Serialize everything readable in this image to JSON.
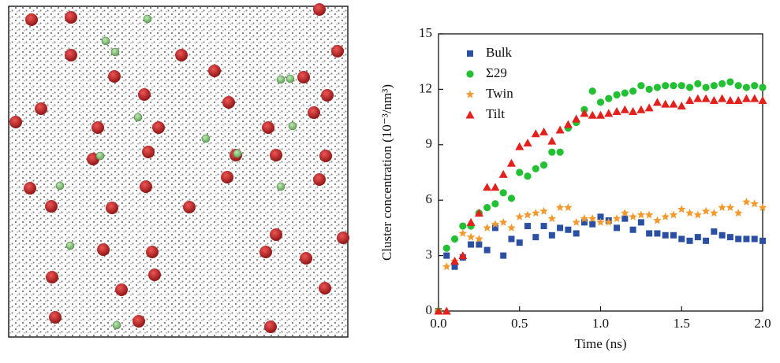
{
  "chart_data": {
    "type": "scatter",
    "x_label": "Time (ns)",
    "y_label": "Cluster concentration (10⁻³/nm³)",
    "xlim": [
      0,
      2
    ],
    "ylim": [
      0,
      15
    ],
    "xticks": [
      {
        "value": 0,
        "label": "0.0"
      },
      0.5,
      {
        "value": 1,
        "label": "1.0"
      },
      1.5,
      {
        "value": 2,
        "label": "2.0"
      }
    ],
    "yticks": [
      0,
      3,
      6,
      9,
      12,
      15
    ],
    "legend": "upper left",
    "x": [
      0,
      0.05,
      0.1,
      0.15,
      0.2,
      0.25,
      0.3,
      0.35,
      0.4,
      0.45,
      0.5,
      0.55,
      0.6,
      0.65,
      0.7,
      0.75,
      0.8,
      0.85,
      0.9,
      0.95,
      1.0,
      1.05,
      1.1,
      1.15,
      1.2,
      1.25,
      1.3,
      1.35,
      1.4,
      1.45,
      1.5,
      1.55,
      1.6,
      1.65,
      1.7,
      1.75,
      1.8,
      1.85,
      1.9,
      1.95,
      2.0
    ],
    "series": [
      {
        "name": "Bulk",
        "color": "#2b4fa3",
        "marker": "square",
        "values": [
          0,
          3.0,
          2.4,
          2.9,
          3.6,
          3.6,
          3.3,
          4.5,
          3.0,
          3.9,
          3.7,
          4.6,
          4.0,
          4.6,
          4.1,
          4.5,
          4.4,
          4.2,
          4.8,
          4.7,
          5.1,
          4.9,
          4.5,
          5.0,
          4.4,
          4.8,
          4.2,
          4.2,
          4.1,
          4.1,
          3.9,
          3.8,
          4.0,
          3.8,
          4.3,
          4.1,
          4.0,
          3.9,
          3.9,
          3.9,
          3.8
        ]
      },
      {
        "name": "Σ29",
        "color": "#22c032",
        "marker": "circle",
        "values": [
          0,
          3.4,
          3.9,
          4.6,
          4.6,
          5.3,
          5.6,
          5.8,
          6.4,
          6.1,
          7.5,
          7.3,
          7.7,
          7.9,
          8.6,
          8.6,
          9.9,
          10.2,
          10.9,
          11.9,
          11.3,
          11.5,
          11.7,
          11.8,
          11.9,
          12.2,
          12.0,
          12.1,
          12.2,
          12.2,
          12.2,
          12.1,
          12.3,
          12.1,
          12.2,
          12.3,
          12.4,
          12.2,
          12.1,
          12.2,
          12.1
        ]
      },
      {
        "name": "Twin",
        "color": "#f29a2e",
        "marker": "star",
        "values": [
          0,
          2.4,
          2.7,
          4.2,
          4.0,
          3.9,
          4.5,
          4.7,
          4.8,
          4.5,
          5.1,
          5.2,
          5.3,
          5.4,
          5.0,
          5.6,
          5.6,
          4.8,
          5.0,
          5.0,
          4.8,
          4.8,
          5.0,
          5.3,
          5.1,
          5.2,
          5.2,
          4.9,
          5.1,
          5.2,
          5.5,
          5.3,
          5.2,
          5.4,
          5.3,
          5.6,
          5.6,
          5.3,
          5.9,
          5.8,
          5.6
        ]
      },
      {
        "name": "Tilt",
        "color": "#e3201c",
        "marker": "triangle",
        "values": [
          0,
          0,
          2.7,
          3.0,
          4.8,
          5.3,
          6.7,
          6.7,
          7.4,
          8.0,
          8.9,
          9.1,
          9.6,
          9.7,
          9.2,
          9.8,
          10.1,
          10.4,
          10.7,
          10.6,
          10.6,
          10.7,
          10.8,
          10.9,
          10.8,
          10.9,
          11.0,
          11.3,
          11.2,
          11.2,
          11.1,
          11.4,
          11.5,
          11.5,
          11.4,
          11.5,
          11.4,
          11.4,
          11.5,
          11.5,
          11.4
        ]
      }
    ]
  }
}
